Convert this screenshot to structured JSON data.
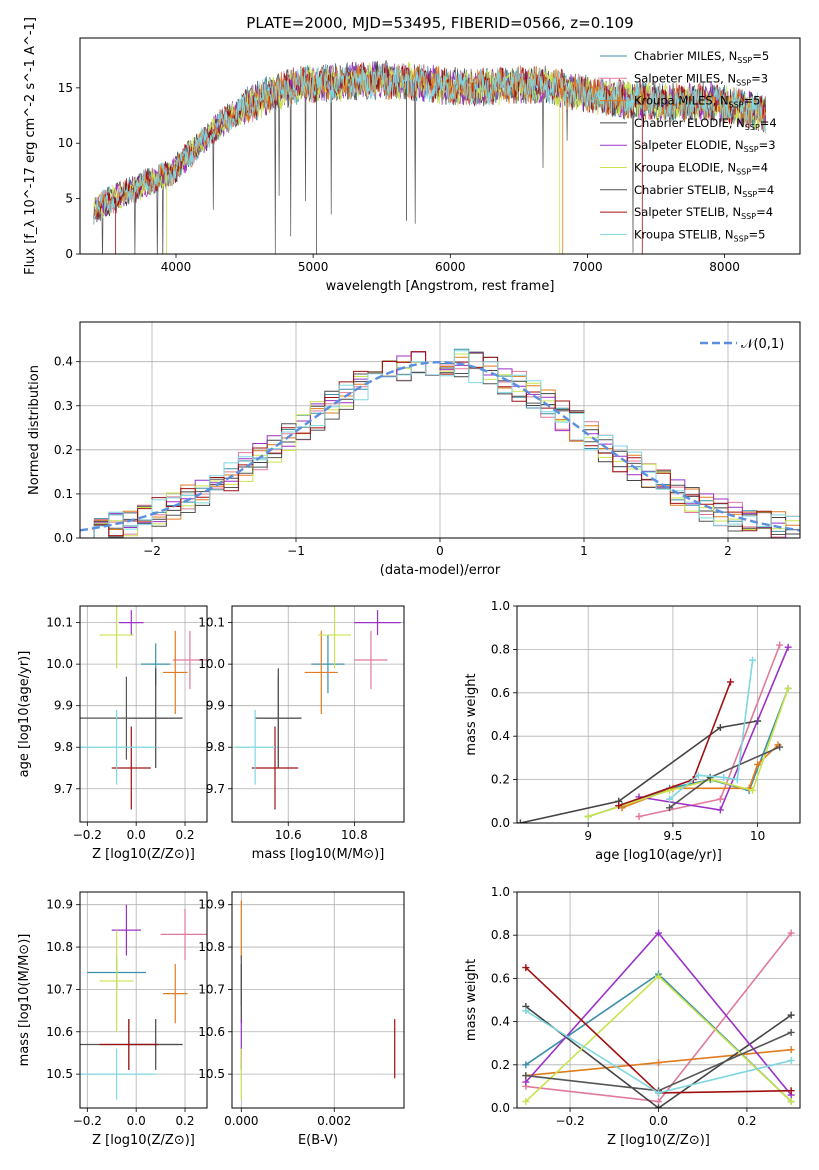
{
  "figure_title": "PLATE=2000, MJD=53495, FIBERID=0566, z=0.109",
  "series_colors": [
    "#3b8fa8",
    "#e07a9a",
    "#e07b1f",
    "#444444",
    "#9b30c8",
    "#c9e34f",
    "#555555",
    "#a01010",
    "#7fd7e0"
  ],
  "chart_data": [
    {
      "id": "spectrum",
      "type": "line",
      "title": "PLATE=2000, MJD=53495, FIBERID=0566, z=0.109",
      "xlabel": "wavelength [Angstrom, rest frame]",
      "ylabel": "Flux [f_λ 10^-17 erg cm^-2 s^-1 A^-1]",
      "xlim": [
        3300,
        8550
      ],
      "ylim": [
        0,
        19.5
      ],
      "xticks": [
        4000,
        5000,
        6000,
        7000,
        8000
      ],
      "yticks": [
        0,
        5,
        10,
        15
      ],
      "grid": false,
      "legend": "top-right",
      "legend_entries": [
        "Chabrier MILES, N_SSP=5",
        "Salpeter MILES, N_SSP=3",
        "Kroupa MILES, N_SSP=5",
        "Chabrier ELODIE, N_SSP=4",
        "Salpeter ELODIE, N_SSP=3",
        "Kroupa ELODIE, N_SSP=4",
        "Chabrier STELIB, N_SSP=4",
        "Salpeter STELIB, N_SSP=4",
        "Kroupa STELIB, N_SSP=5"
      ],
      "data_range": [
        3400,
        8300
      ],
      "continuum": {
        "x": [
          3400,
          3600,
          3800,
          3950,
          4100,
          4300,
          4500,
          4700,
          4900,
          5100,
          5300,
          5500,
          5700,
          5900,
          6100,
          6300,
          6500,
          6700,
          6900,
          7100,
          7300,
          7500,
          7700,
          7900,
          8100,
          8300
        ],
        "y": [
          4.0,
          5.3,
          6.5,
          7.2,
          9.0,
          11.5,
          13.3,
          14.5,
          15.3,
          15.4,
          15.6,
          15.7,
          15.6,
          15.3,
          15.0,
          15.1,
          15.3,
          15.2,
          14.7,
          14.2,
          13.9,
          13.8,
          13.6,
          13.8,
          13.3,
          12.6
        ]
      }
    },
    {
      "id": "residual-histogram",
      "type": "line",
      "xlabel": "(data-model)/error",
      "ylabel": "Normed distribution",
      "xlim": [
        -2.5,
        2.5
      ],
      "ylim": [
        0,
        0.49
      ],
      "xticks": [
        -2,
        -1,
        0,
        1,
        2
      ],
      "yticks": [
        0.0,
        0.1,
        0.2,
        0.3,
        0.4
      ],
      "xticklabels": [
        "−2",
        "−1",
        "0",
        "1",
        "2"
      ],
      "grid": true,
      "legend": "top-right",
      "reference_curve": {
        "name": "𝒩(0,1)",
        "mean": 0,
        "sigma": 1
      },
      "bin_width": 0.1
    },
    {
      "id": "age-vs-Z",
      "type": "scatter",
      "xlabel": "Z [log10(Z/Z⊙)]",
      "ylabel": "age  [log10(age/yr)]",
      "xlim": [
        -0.23,
        0.29
      ],
      "ylim": [
        9.62,
        10.14
      ],
      "xticks": [
        -0.2,
        0.0,
        0.2
      ],
      "yticks": [
        9.7,
        9.8,
        9.9,
        10.0,
        10.1
      ],
      "xticklabels": [
        "−0.2",
        "0.0",
        "0.2"
      ],
      "grid": true,
      "points": [
        {
          "x": 0.08,
          "xe": 0.06,
          "y": 10.0,
          "ye": 0.05
        },
        {
          "x": 0.22,
          "xe": 0.07,
          "y": 10.01,
          "ye": 0.07
        },
        {
          "x": 0.16,
          "xe": 0.05,
          "y": 9.98,
          "ye": 0.1
        },
        {
          "x": 0.08,
          "xe": 0.11,
          "y": 9.87,
          "ye": 0.12
        },
        {
          "x": -0.02,
          "xe": 0.05,
          "y": 10.1,
          "ye": 0.03
        },
        {
          "x": -0.08,
          "xe": 0.07,
          "y": 10.07,
          "ye": 0.08
        },
        {
          "x": -0.04,
          "xe": 0.2,
          "y": 9.87,
          "ye": 0.1
        },
        {
          "x": -0.02,
          "xe": 0.08,
          "y": 9.75,
          "ye": 0.1
        },
        {
          "x": -0.08,
          "xe": 0.16,
          "y": 9.8,
          "ye": 0.09
        }
      ]
    },
    {
      "id": "age-vs-mass",
      "type": "scatter",
      "xlabel": "mass [log10(M/M⊙)]",
      "ylabel": "",
      "xlim": [
        10.43,
        10.95
      ],
      "ylim": [
        9.62,
        10.14
      ],
      "xticks": [
        10.6,
        10.8
      ],
      "yticks": [
        9.7,
        9.8,
        9.9,
        10.0,
        10.1
      ],
      "grid": true,
      "points": [
        {
          "x": 10.72,
          "xe": 0.05,
          "y": 10.0,
          "ye": 0.07
        },
        {
          "x": 10.85,
          "xe": 0.05,
          "y": 10.01,
          "ye": 0.07
        },
        {
          "x": 10.7,
          "xe": 0.05,
          "y": 9.98,
          "ye": 0.1
        },
        {
          "x": 10.57,
          "xe": 0.07,
          "y": 9.87,
          "ye": 0.12
        },
        {
          "x": 10.87,
          "xe": 0.07,
          "y": 10.1,
          "ye": 0.03
        },
        {
          "x": 10.74,
          "xe": 0.05,
          "y": 10.07,
          "ye": 0.08
        },
        {
          "x": 10.57,
          "xe": 0.06,
          "y": 9.87,
          "ye": 0.1
        },
        {
          "x": 10.56,
          "xe": 0.07,
          "y": 9.75,
          "ye": 0.1
        },
        {
          "x": 10.5,
          "xe": 0.06,
          "y": 9.8,
          "ye": 0.09
        }
      ]
    },
    {
      "id": "mass-weight-vs-age",
      "type": "line",
      "xlabel": "age  [log10(age/yr)]",
      "ylabel": "mass weight",
      "xlim": [
        8.58,
        10.25
      ],
      "ylim": [
        0,
        1
      ],
      "xticks": [
        9.0,
        9.5,
        10.0
      ],
      "yticks": [
        0.0,
        0.2,
        0.4,
        0.6,
        0.8,
        1.0
      ],
      "grid": true,
      "series": [
        {
          "x": [
            9.0,
            9.2,
            9.48,
            9.72,
            9.95,
            10.18
          ],
          "y": [
            0.03,
            0.08,
            0.16,
            0.2,
            0.15,
            0.62
          ]
        },
        {
          "x": [
            9.3,
            9.78,
            10.13
          ],
          "y": [
            0.03,
            0.11,
            0.82
          ]
        },
        {
          "x": [
            9.2,
            9.5,
            9.95,
            10.0,
            10.12
          ],
          "y": [
            0.07,
            0.16,
            0.16,
            0.27,
            0.36
          ]
        },
        {
          "x": [
            8.6,
            9.18,
            9.78,
            10.0
          ],
          "y": [
            0.0,
            0.1,
            0.44,
            0.47
          ]
        },
        {
          "x": [
            9.3,
            9.78,
            10.18
          ],
          "y": [
            0.12,
            0.06,
            0.81
          ]
        },
        {
          "x": [
            9.0,
            9.48,
            9.73,
            9.97,
            10.18
          ],
          "y": [
            0.03,
            0.15,
            0.2,
            0.15,
            0.62
          ]
        },
        {
          "x": [
            9.48,
            9.72,
            10.13
          ],
          "y": [
            0.07,
            0.21,
            0.35
          ]
        },
        {
          "x": [
            9.18,
            9.62,
            9.84
          ],
          "y": [
            0.08,
            0.2,
            0.65
          ]
        },
        {
          "x": [
            9.48,
            9.65,
            9.8,
            9.88,
            9.97
          ],
          "y": [
            0.11,
            0.22,
            0.21,
            0.2,
            0.75
          ]
        }
      ]
    },
    {
      "id": "mass-vs-Z",
      "type": "scatter",
      "xlabel": "Z [log10(Z/Z⊙)]",
      "ylabel": "mass [log10(M/M⊙)]",
      "xlim": [
        -0.23,
        0.29
      ],
      "ylim": [
        10.42,
        10.93
      ],
      "xticks": [
        -0.2,
        0.0,
        0.2
      ],
      "yticks": [
        10.5,
        10.6,
        10.7,
        10.8,
        10.9
      ],
      "xticklabels": [
        "−0.2",
        "0.0",
        "0.2"
      ],
      "grid": true,
      "points": [
        {
          "x": -0.08,
          "xe": 0.12,
          "y": 10.74,
          "ye": 0.04
        },
        {
          "x": 0.2,
          "xe": 0.1,
          "y": 10.83,
          "ye": 0.06
        },
        {
          "x": 0.16,
          "xe": 0.05,
          "y": 10.69,
          "ye": 0.07
        },
        {
          "x": 0.08,
          "xe": 0.11,
          "y": 10.57,
          "ye": 0.06
        },
        {
          "x": -0.04,
          "xe": 0.06,
          "y": 10.84,
          "ye": 0.06
        },
        {
          "x": -0.08,
          "xe": 0.07,
          "y": 10.72,
          "ye": 0.12
        },
        {
          "x": -0.03,
          "xe": 0.2,
          "y": 10.57,
          "ye": 0.06
        },
        {
          "x": -0.03,
          "xe": 0.12,
          "y": 10.57,
          "ye": 0.06
        },
        {
          "x": -0.08,
          "xe": 0.16,
          "y": 10.5,
          "ye": 0.06
        }
      ]
    },
    {
      "id": "mass-vs-ebv",
      "type": "scatter",
      "xlabel": "E(B-V)",
      "ylabel": "",
      "xlim": [
        -0.0002,
        0.0035
      ],
      "ylim": [
        10.42,
        10.93
      ],
      "xticks": [
        0.0,
        0.002
      ],
      "yticks": [
        10.5,
        10.6,
        10.7,
        10.8,
        10.9
      ],
      "xticklabels": [
        "0.000",
        "0.002"
      ],
      "grid": true,
      "points": [
        {
          "x": 0.0,
          "y": 10.84,
          "ye": 0.07
        },
        {
          "x": 0.0,
          "y": 10.69,
          "ye": 0.07
        },
        {
          "x": 0.0,
          "y": 10.57,
          "ye": 0.06
        },
        {
          "x": 0.0,
          "y": 10.5,
          "ye": 0.06
        },
        {
          "x": 0.0,
          "y": 10.72,
          "ye": 0.06
        },
        {
          "x": 0.0033,
          "y": 10.56,
          "ye": 0.07
        }
      ]
    },
    {
      "id": "mass-weight-vs-Z",
      "type": "line",
      "xlabel": "Z [log10(Z/Z⊙)]",
      "ylabel": "mass weight",
      "xlim": [
        -0.32,
        0.32
      ],
      "ylim": [
        0,
        1
      ],
      "xticks": [
        -0.2,
        0.0,
        0.2
      ],
      "yticks": [
        0.0,
        0.2,
        0.4,
        0.6,
        0.8,
        1.0
      ],
      "xticklabels": [
        "−0.2",
        "0.0",
        "0.2"
      ],
      "grid": true,
      "series": [
        {
          "x": [
            -0.3,
            0.0,
            0.3
          ],
          "y": [
            0.2,
            0.62,
            0.03
          ]
        },
        {
          "x": [
            -0.3,
            0.0,
            0.3
          ],
          "y": [
            0.1,
            0.03,
            0.81
          ]
        },
        {
          "x": [
            -0.3,
            0.0,
            0.3
          ],
          "y": [
            0.15,
            0.21,
            0.27
          ]
        },
        {
          "x": [
            -0.3,
            0.0,
            0.3
          ],
          "y": [
            0.47,
            0.0,
            0.43
          ]
        },
        {
          "x": [
            -0.3,
            0.0,
            0.3
          ],
          "y": [
            0.12,
            0.81,
            0.06
          ]
        },
        {
          "x": [
            -0.3,
            0.0,
            0.3
          ],
          "y": [
            0.03,
            0.61,
            0.03
          ]
        },
        {
          "x": [
            -0.3,
            0.0,
            0.3
          ],
          "y": [
            0.15,
            0.08,
            0.35
          ]
        },
        {
          "x": [
            -0.3,
            0.0,
            0.3
          ],
          "y": [
            0.65,
            0.07,
            0.08
          ]
        },
        {
          "x": [
            -0.3,
            0.0,
            0.3
          ],
          "y": [
            0.45,
            0.07,
            0.22
          ]
        }
      ]
    }
  ]
}
